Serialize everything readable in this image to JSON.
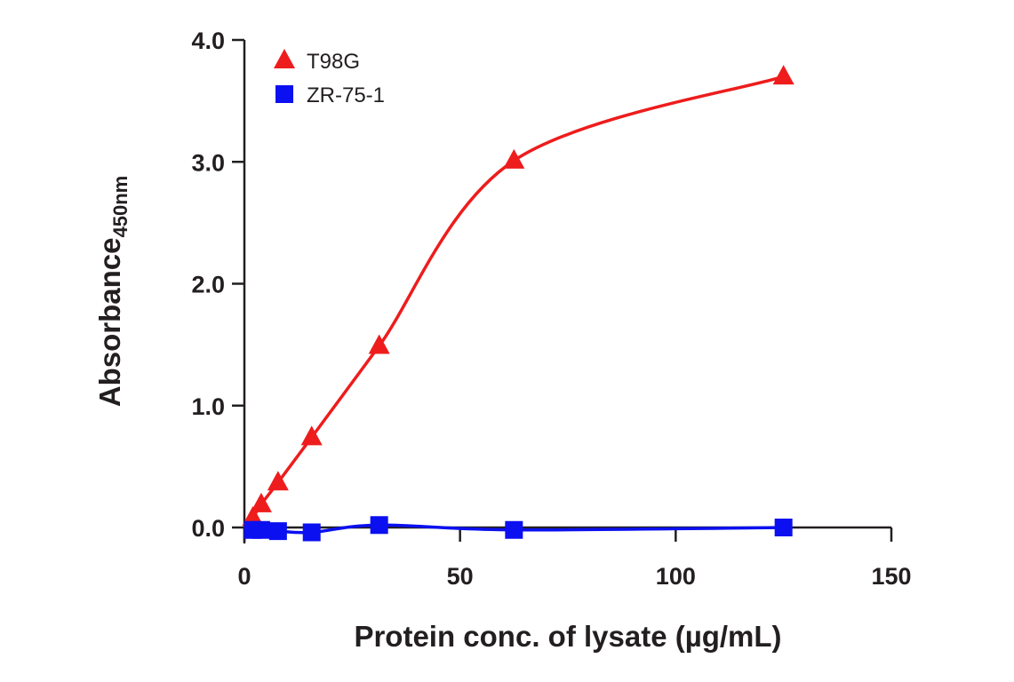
{
  "chart_data": {
    "type": "line",
    "title": "",
    "xlabel": "Protein conc. of lysate (µg/mL)",
    "ylabel": "Absorbance",
    "ylabel_subscript": "450nm",
    "xlim": [
      0,
      150
    ],
    "ylim": [
      0,
      4
    ],
    "xticks": [
      0,
      50,
      100,
      150
    ],
    "xtick_labels": [
      "0",
      "50",
      "100",
      "150"
    ],
    "yticks": [
      0,
      1,
      2,
      3,
      4
    ],
    "ytick_labels": [
      "0.0",
      "1.0",
      "2.0",
      "3.0",
      "4.0"
    ],
    "grid": false,
    "legend_position": "top-left",
    "series": [
      {
        "name": "T98G",
        "color": "#ee1c1c",
        "marker": "triangle",
        "x": [
          1.95,
          3.9,
          7.8,
          15.6,
          31.25,
          62.5,
          125
        ],
        "y": [
          0.08,
          0.19,
          0.37,
          0.74,
          1.49,
          3.01,
          3.7
        ]
      },
      {
        "name": "ZR-75-1",
        "color": "#0b10f0",
        "marker": "square",
        "x": [
          1.95,
          3.9,
          7.8,
          15.6,
          31.25,
          62.5,
          125
        ],
        "y": [
          -0.02,
          -0.02,
          -0.03,
          -0.04,
          0.02,
          -0.02,
          0.0
        ]
      }
    ]
  }
}
